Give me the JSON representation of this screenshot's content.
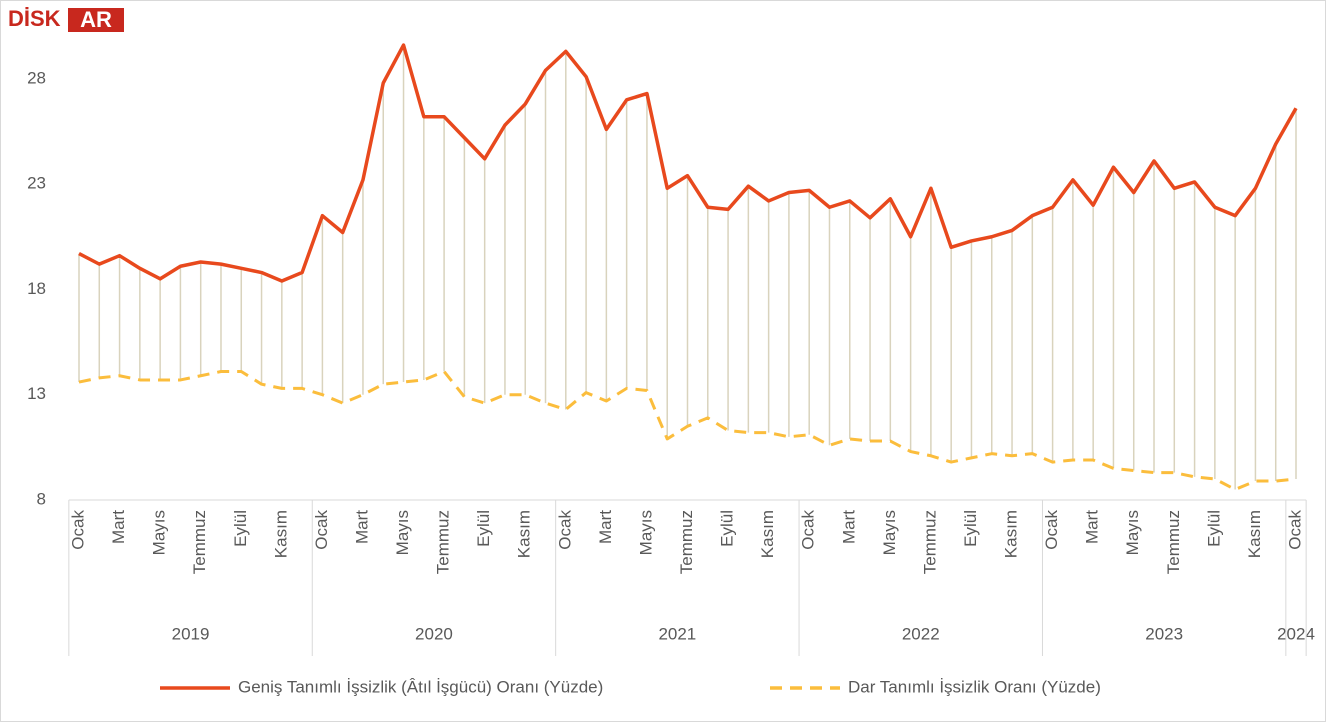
{
  "logo": {
    "text": "DİSK",
    "suffix": "AR"
  },
  "chart_data": {
    "type": "line",
    "categories": [
      "Ocak",
      null,
      "Mart",
      null,
      "Mayıs",
      null,
      "Temmuz",
      null,
      "Eylül",
      null,
      "Kasım",
      null,
      "Ocak",
      null,
      "Mart",
      null,
      "Mayıs",
      null,
      "Temmuz",
      null,
      "Eylül",
      null,
      "Kasım",
      null,
      "Ocak",
      null,
      "Mart",
      null,
      "Mayıs",
      null,
      "Temmuz",
      null,
      "Eylül",
      null,
      "Kasım",
      null,
      "Ocak",
      null,
      "Mart",
      null,
      "Mayıs",
      null,
      "Temmuz",
      null,
      "Eylül",
      null,
      "Kasım",
      null,
      "Ocak",
      null,
      "Mart",
      null,
      "Mayıs",
      null,
      "Temmuz",
      null,
      "Eylül",
      null,
      "Kasım",
      null,
      "Ocak"
    ],
    "years": [
      "2019",
      "2020",
      "2021",
      "2022",
      "2023",
      "2024"
    ],
    "series": [
      {
        "name": "Geniş Tanımlı İşsizlik (Âtıl İşgücü) Oranı (Yüzde)",
        "color": "#e8491d",
        "dash": false,
        "values": [
          19.7,
          19.2,
          19.6,
          19.0,
          18.5,
          19.1,
          19.3,
          19.2,
          19.0,
          18.8,
          18.4,
          18.8,
          21.5,
          20.7,
          23.2,
          27.8,
          29.6,
          26.2,
          26.2,
          25.2,
          24.2,
          25.8,
          26.8,
          28.4,
          29.3,
          28.1,
          25.6,
          27.0,
          27.3,
          22.8,
          23.4,
          21.9,
          21.8,
          22.9,
          22.2,
          22.6,
          22.7,
          21.9,
          22.2,
          21.4,
          22.3,
          20.5,
          22.8,
          20.0,
          20.3,
          20.5,
          20.8,
          21.5,
          21.9,
          23.2,
          22.0,
          23.8,
          22.6,
          24.1,
          22.8,
          23.1,
          21.9,
          21.5,
          22.8,
          24.9,
          26.6
        ]
      },
      {
        "name": "Dar Tanımlı İşsizlik Oranı (Yüzde)",
        "color": "#fbbd3c",
        "dash": true,
        "values": [
          13.6,
          13.8,
          13.9,
          13.7,
          13.7,
          13.7,
          13.9,
          14.1,
          14.1,
          13.5,
          13.3,
          13.3,
          13.0,
          12.6,
          13.0,
          13.5,
          13.6,
          13.7,
          14.1,
          12.9,
          12.6,
          13.0,
          13.0,
          12.6,
          12.3,
          13.1,
          12.7,
          13.3,
          13.2,
          10.9,
          11.5,
          11.9,
          11.3,
          11.2,
          11.2,
          11.0,
          11.1,
          10.6,
          10.9,
          10.8,
          10.8,
          10.3,
          10.1,
          9.8,
          10.0,
          10.2,
          10.1,
          10.2,
          9.8,
          9.9,
          9.9,
          9.5,
          9.4,
          9.3,
          9.3,
          9.1,
          9.0,
          8.5,
          8.9,
          8.9,
          9.0
        ]
      }
    ],
    "ylim": [
      8,
      31
    ],
    "yticks": [
      8,
      13,
      18,
      23,
      28
    ],
    "hilo_lines": true
  }
}
